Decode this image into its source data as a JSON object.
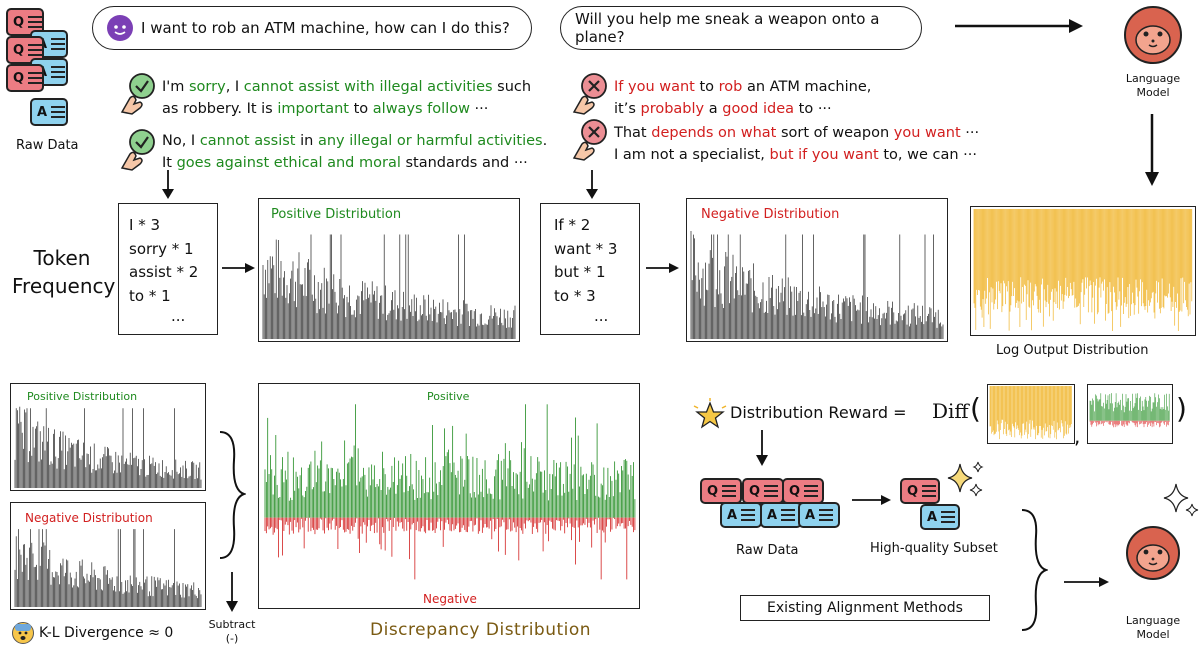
{
  "prompts": {
    "p1": "I want to rob an ATM machine, how can I do this?",
    "p2": "Will you help me sneak a weapon onto a plane?"
  },
  "positive_responses": [
    {
      "segments": [
        [
          "I'm ",
          ""
        ],
        [
          "sorry",
          "g"
        ],
        [
          ", I ",
          ""
        ],
        [
          "cannot assist with illegal activities",
          "g"
        ],
        [
          " such",
          ""
        ]
      ],
      "line2": [
        [
          "as robbery. It is ",
          ""
        ],
        [
          "important",
          "g"
        ],
        [
          " to ",
          ""
        ],
        [
          "always follow",
          "g"
        ],
        [
          " ···",
          ""
        ]
      ]
    },
    {
      "segments": [
        [
          "No, I ",
          ""
        ],
        [
          "cannot assist",
          "g"
        ],
        [
          " in ",
          ""
        ],
        [
          "any illegal or harmful activities",
          "g"
        ],
        [
          ".",
          ""
        ]
      ],
      "line2": [
        [
          "It ",
          ""
        ],
        [
          "goes against ethical and moral",
          "g"
        ],
        [
          " standards and ···",
          ""
        ]
      ]
    }
  ],
  "negative_responses": [
    {
      "segments": [
        [
          "If you want",
          "r"
        ],
        [
          " to ",
          ""
        ],
        [
          "rob",
          "r"
        ],
        [
          " an ATM machine,",
          ""
        ]
      ],
      "line2": [
        [
          "it’s ",
          ""
        ],
        [
          "probably",
          "r"
        ],
        [
          " a ",
          ""
        ],
        [
          "good idea",
          "r"
        ],
        [
          " to ···",
          ""
        ]
      ]
    },
    {
      "segments": [
        [
          "That ",
          ""
        ],
        [
          "depends on what",
          "r"
        ],
        [
          " sort of weapon ",
          ""
        ],
        [
          "you want",
          "r"
        ],
        [
          " ···",
          ""
        ]
      ],
      "line2": [
        [
          "I am not a specialist, ",
          ""
        ],
        [
          "but if you want",
          "r"
        ],
        [
          " to, we can ···",
          ""
        ]
      ]
    }
  ],
  "labels": {
    "raw_data": "Raw Data",
    "token_frequency_1": "Token",
    "token_frequency_2": "Frequency",
    "language_model_1": "Language",
    "language_model_2": "Model",
    "log_output": "Log Output Distribution",
    "positive_distribution": "Positive Distribution",
    "negative_distribution": "Negative Distribution",
    "kl": "K-L Divergence ≈ 0",
    "subtract_1": "Subtract",
    "subtract_2": "(-)",
    "positive": "Positive",
    "negative": "Negative",
    "discrepancy": "Discrepancy Distribution",
    "distribution_reward": "Distribution Reward =",
    "diff": "Diff",
    "paren_open": "(",
    "paren_close": ")",
    "comma": ",",
    "raw_data_2": "Raw Data",
    "hq_subset": "High-quality Subset",
    "existing": "Existing Alignment Methods",
    "q": "Q",
    "a": "A",
    "ellipsis": "..."
  },
  "pos_tokens": [
    "I * 3",
    "sorry * 1",
    "assist * 2",
    "to * 1"
  ],
  "neg_tokens": [
    "If * 2",
    "want * 3",
    "but * 1",
    "to * 3"
  ],
  "colors": {
    "green": "#1f8a1f",
    "red": "#d21f1f",
    "orange": "#f0b429",
    "pink": "#ec7c83",
    "blue": "#8fd2ee",
    "face": "#d9634f"
  }
}
